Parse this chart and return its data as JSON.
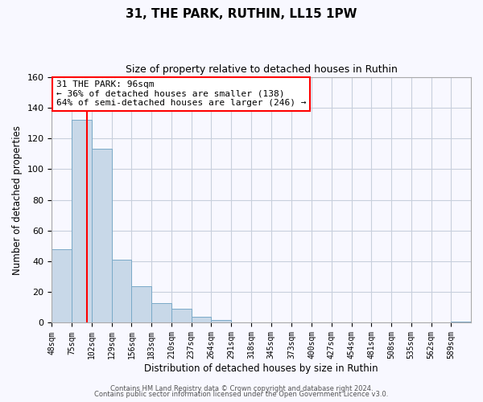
{
  "title": "31, THE PARK, RUTHIN, LL15 1PW",
  "subtitle": "Size of property relative to detached houses in Ruthin",
  "xlabel": "Distribution of detached houses by size in Ruthin",
  "ylabel": "Number of detached properties",
  "bin_labels": [
    "48sqm",
    "75sqm",
    "102sqm",
    "129sqm",
    "156sqm",
    "183sqm",
    "210sqm",
    "237sqm",
    "264sqm",
    "291sqm",
    "318sqm",
    "345sqm",
    "373sqm",
    "400sqm",
    "427sqm",
    "454sqm",
    "481sqm",
    "508sqm",
    "535sqm",
    "562sqm",
    "589sqm"
  ],
  "bin_edges": [
    48,
    75,
    102,
    129,
    156,
    183,
    210,
    237,
    264,
    291,
    318,
    345,
    373,
    400,
    427,
    454,
    481,
    508,
    535,
    562,
    589,
    616
  ],
  "bar_heights": [
    48,
    132,
    113,
    41,
    24,
    13,
    9,
    4,
    2,
    0,
    0,
    0,
    0,
    0,
    0,
    0,
    0,
    0,
    0,
    0,
    1
  ],
  "bar_color": "#c8d8e8",
  "bar_edge_color": "#7aaac8",
  "property_line_x": 96,
  "property_line_color": "red",
  "annotation_title": "31 THE PARK: 96sqm",
  "annotation_line1": "← 36% of detached houses are smaller (138)",
  "annotation_line2": "64% of semi-detached houses are larger (246) →",
  "annotation_box_color": "white",
  "annotation_box_edge_color": "red",
  "ylim": [
    0,
    160
  ],
  "yticks": [
    0,
    20,
    40,
    60,
    80,
    100,
    120,
    140,
    160
  ],
  "footer_line1": "Contains HM Land Registry data © Crown copyright and database right 2024.",
  "footer_line2": "Contains public sector information licensed under the Open Government Licence v3.0.",
  "background_color": "#f8f8ff",
  "grid_color": "#c8d0dc",
  "title_fontsize": 11,
  "subtitle_fontsize": 9,
  "tick_fontsize": 7,
  "label_fontsize": 8.5,
  "ann_fontsize": 8,
  "footer_fontsize": 6
}
